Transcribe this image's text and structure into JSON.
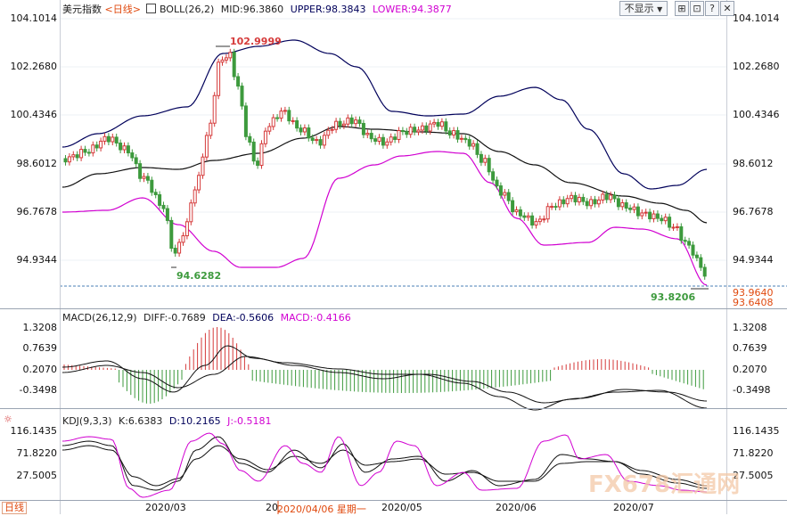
{
  "header": {
    "symbol": "美元指数",
    "period": "<日线>",
    "indicator": "BOLL(26,2)",
    "mid": "MID:96.3860",
    "upper": "UPPER:98.3843",
    "lower": "LOWER:94.3877",
    "display_select": "不显示",
    "display_arrow": "▼"
  },
  "price_axis": [
    "104.1014",
    "102.2680",
    "100.4346",
    "98.6012",
    "96.7678",
    "94.9344"
  ],
  "price_marks": {
    "high": "102.9999",
    "low": "94.6282",
    "recent_low": "93.8206",
    "last_a": "93.9640",
    "last_b": "93.6408"
  },
  "macd": {
    "label": "MACD(26,12,9)",
    "diff": "DIFF:-0.7689",
    "dea": "DEA:-0.5606",
    "macd": "MACD:-0.4166",
    "axis_left": [
      "1.3208",
      "0.7639",
      "0.2070",
      "-0.3498"
    ],
    "axis_right": [
      "1.3208",
      "0.7639",
      "0.2070",
      "-0.3498"
    ]
  },
  "kdj": {
    "label": "KDJ(9,3,3)",
    "k": "K:6.6383",
    "d": "D:10.2165",
    "j": "J:-0.5181",
    "axis_left": [
      "116.1435",
      "71.8220",
      "27.5005"
    ],
    "axis_right": [
      "116.1435",
      "71.8220",
      "27.5005"
    ]
  },
  "timeline": {
    "period": "日线",
    "ticks": [
      "2020/03",
      "20",
      "2020/05",
      "2020/06",
      "2020/07"
    ],
    "cursor_date": "2020/04/06 星期一"
  },
  "watermark": "FX678汇通网",
  "colors": {
    "up": "#d53a3a",
    "down": "#3d9a3d",
    "mid": "#111111",
    "upper": "#00005a",
    "lower": "#d100d1",
    "accent": "#e04a0f"
  },
  "icons": [
    "settings-icon",
    "popout-icon",
    "help-icon",
    "close-icon"
  ]
}
